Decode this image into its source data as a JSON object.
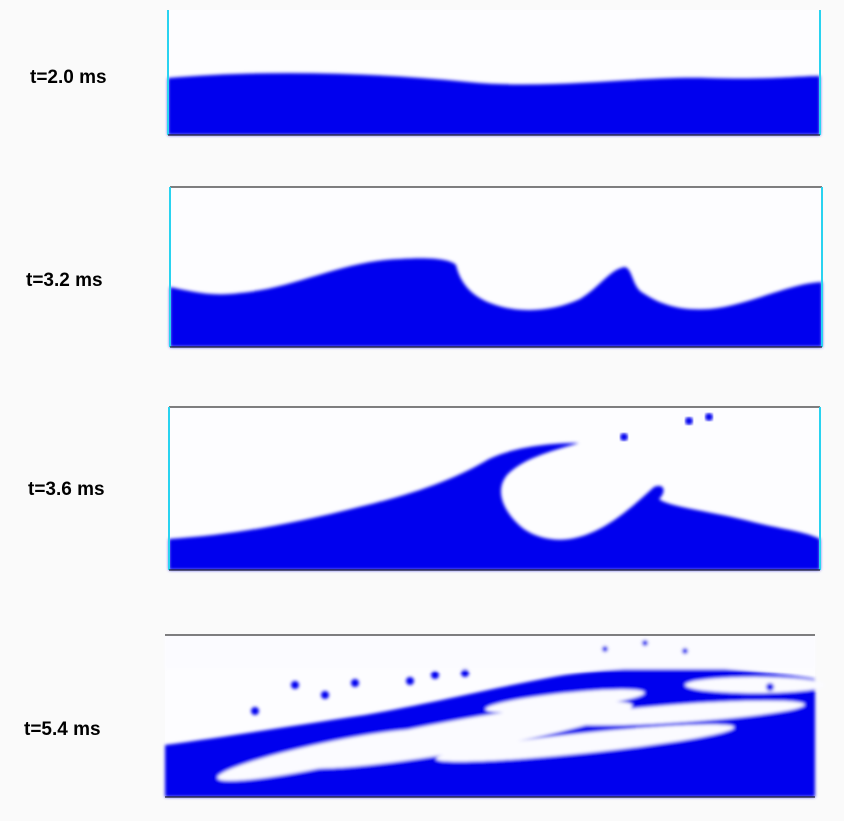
{
  "panels": [
    {
      "label": "t=2.0 ms"
    },
    {
      "label": "t=3.2 ms"
    },
    {
      "label": "t=3.6 ms"
    },
    {
      "label": "t=5.4 ms"
    }
  ]
}
